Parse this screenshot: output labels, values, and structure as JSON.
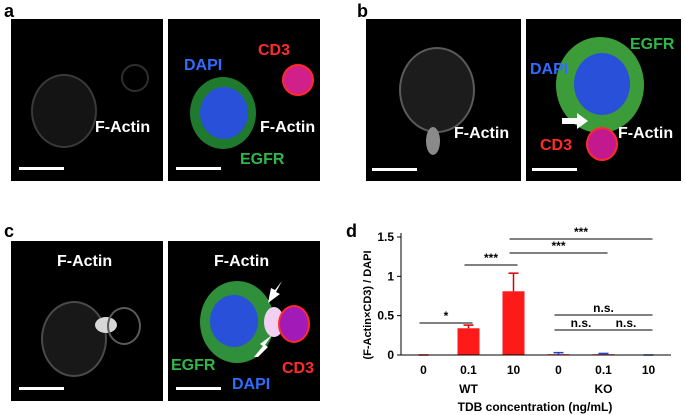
{
  "panels": {
    "a": {
      "letter": "a",
      "left_label": "F-Actin",
      "right_labels": {
        "dapi": "DAPI",
        "cd3": "CD3",
        "factin": "F-Actin",
        "egfr": "EGFR"
      }
    },
    "b": {
      "letter": "b",
      "left_label": "F-Actin",
      "right_labels": {
        "egfr": "EGFR",
        "dapi": "DAPI",
        "cd3": "CD3",
        "factin": "F-Actin"
      }
    },
    "c": {
      "letter": "c",
      "left_label": "F-Actin",
      "right_labels": {
        "factin": "F-Actin",
        "egfr": "EGFR",
        "dapi": "DAPI",
        "cd3": "CD3"
      }
    },
    "d": {
      "letter": "d"
    }
  },
  "colors": {
    "egfr": "#2fb84a",
    "dapi": "#2f6cff",
    "cd3": "#ff2b2b",
    "bar": "#ff1a1a"
  },
  "chart_data": {
    "type": "bar",
    "ylabel": "(F-Actin×CD3) / DAPI",
    "xlabel": "TDB concentration (ng/mL)",
    "categories": [
      "0",
      "0.1",
      "10",
      "0",
      "0.1",
      "10"
    ],
    "groups": [
      {
        "name": "WT",
        "range": [
          0,
          2
        ]
      },
      {
        "name": "KO",
        "range": [
          3,
          5
        ]
      }
    ],
    "values": [
      0.0,
      0.34,
      0.81,
      0.01,
      0.01,
      0.0
    ],
    "errors": [
      0.0,
      0.04,
      0.23,
      0.02,
      0.01,
      0.0
    ],
    "ylim": [
      0,
      1.5
    ],
    "yticks": [
      "0",
      "0.5",
      "1",
      "1.5"
    ],
    "significance": [
      {
        "from": 0,
        "to": 1,
        "label": "*"
      },
      {
        "from": 1,
        "to": 2,
        "label": "***"
      },
      {
        "from": 2,
        "to": 4,
        "label": "***"
      },
      {
        "from": 2,
        "to": 5,
        "label": "***"
      },
      {
        "from": 3,
        "to": 4,
        "label": "n.s."
      },
      {
        "from": 4,
        "to": 5,
        "label": "n.s."
      },
      {
        "from": 3,
        "to": 5,
        "label": "n.s."
      }
    ]
  }
}
